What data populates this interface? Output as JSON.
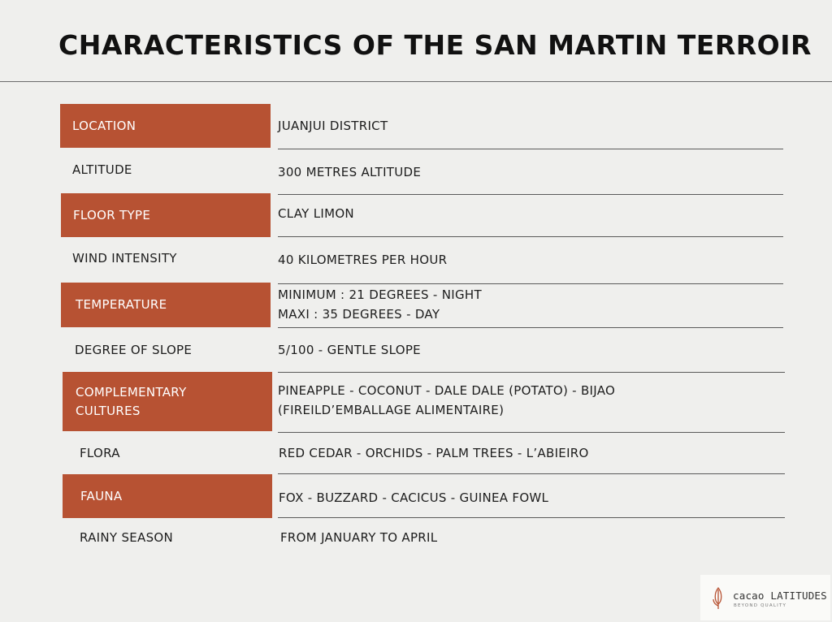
{
  "title": "CHARACTERISTICS OF THE SAN MARTIN TERROIR",
  "rows": [
    {
      "label": "LOCATION",
      "value": "JUANJUI DISTRICT"
    },
    {
      "label": "ALTITUDE",
      "value": "300 METRES ALTITUDE"
    },
    {
      "label": "FLOOR TYPE",
      "value": "CLAY LIMON"
    },
    {
      "label": "WIND INTENSITY",
      "value": "40 KILOMETRES PER HOUR"
    },
    {
      "label": "TEMPERATURE",
      "value_line1": "MINIMUM : 21 DEGREES - NIGHT",
      "value_line2": "MAXI : 35 DEGREES - DAY"
    },
    {
      "label": "DEGREE OF SLOPE",
      "value": "5/100 - GENTLE SLOPE"
    },
    {
      "label_line1": "COMPLEMENTARY",
      "label_line2": "CULTURES",
      "value_line1": "PINEAPPLE - COCONUT - DALE DALE (POTATO) - BIJAO",
      "value_line2": "(FIREILD’EMBALLAGE ALIMENTAIRE)"
    },
    {
      "label": "FLORA",
      "value": "RED CEDAR - ORCHIDS - PALM TREES - L’ABIEIRO"
    },
    {
      "label": "FAUNA",
      "value": "FOX - BUZZARD - CACICUS - GUINEA FOWL"
    },
    {
      "label": "RAINY SEASON",
      "value": "FROM JANUARY TO APRIL"
    }
  ],
  "logo": {
    "name": "cacao LATITUDES",
    "tagline": "BEYOND QUALITY"
  },
  "colors": {
    "label_fill": "#b75233",
    "background": "#efefed",
    "rule": "#5a5a5a"
  }
}
